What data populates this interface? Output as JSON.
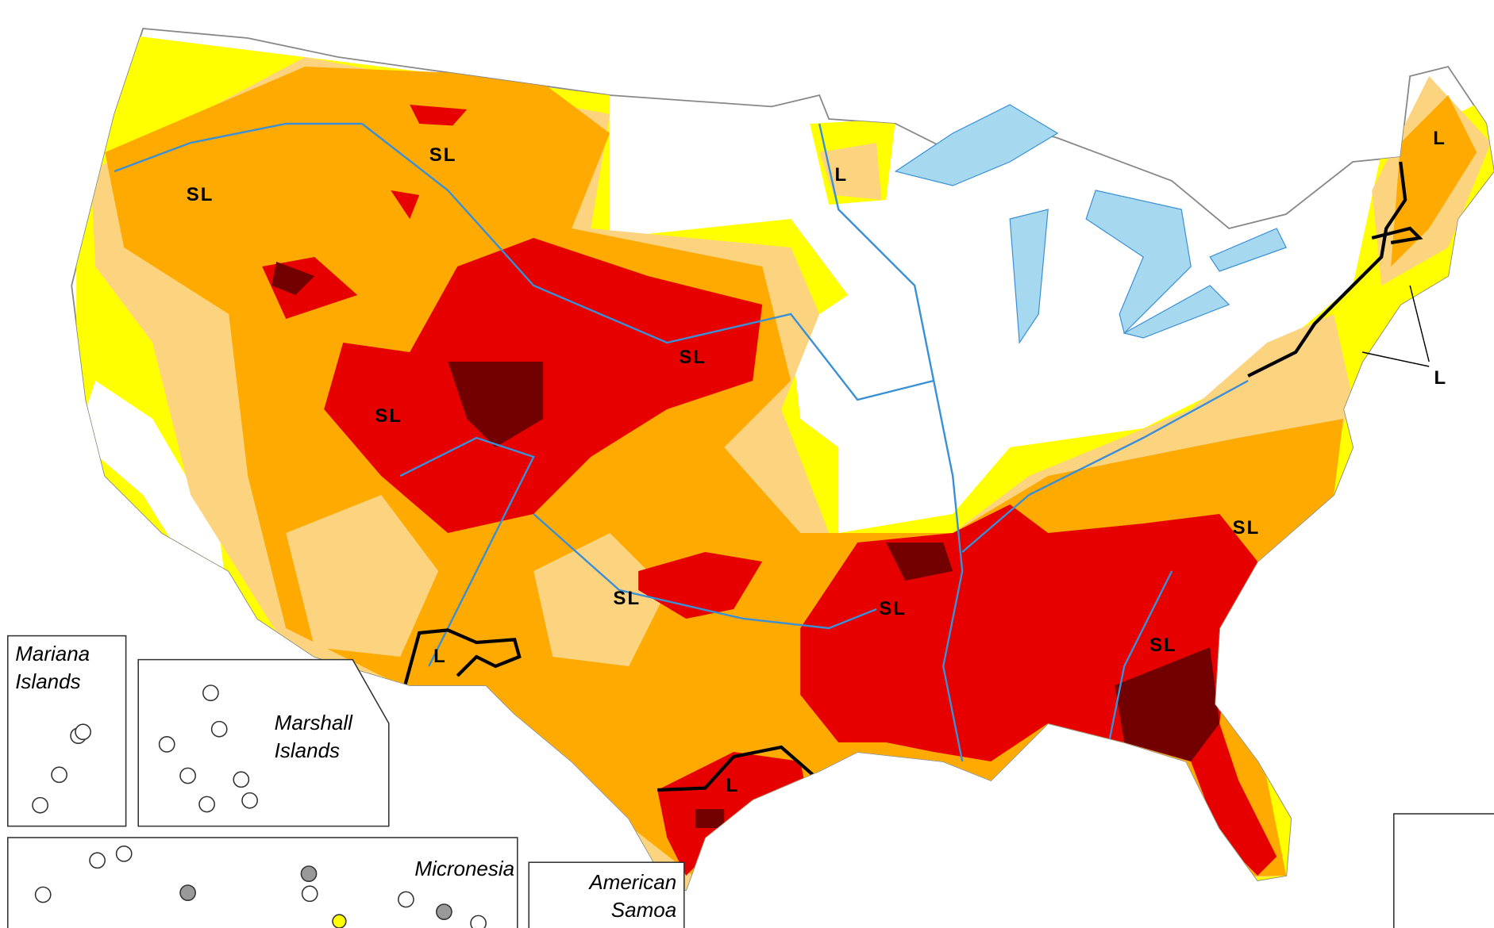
{
  "map_labels": [
    "SL",
    "SL",
    "SL",
    "SL",
    "SL",
    "SL",
    "SL",
    "SL",
    "L",
    "L",
    "L",
    "L",
    "L"
  ],
  "insets": [
    "Mariana Islands",
    "Marshall Islands",
    "Micronesia",
    "American Samoa"
  ]
}
